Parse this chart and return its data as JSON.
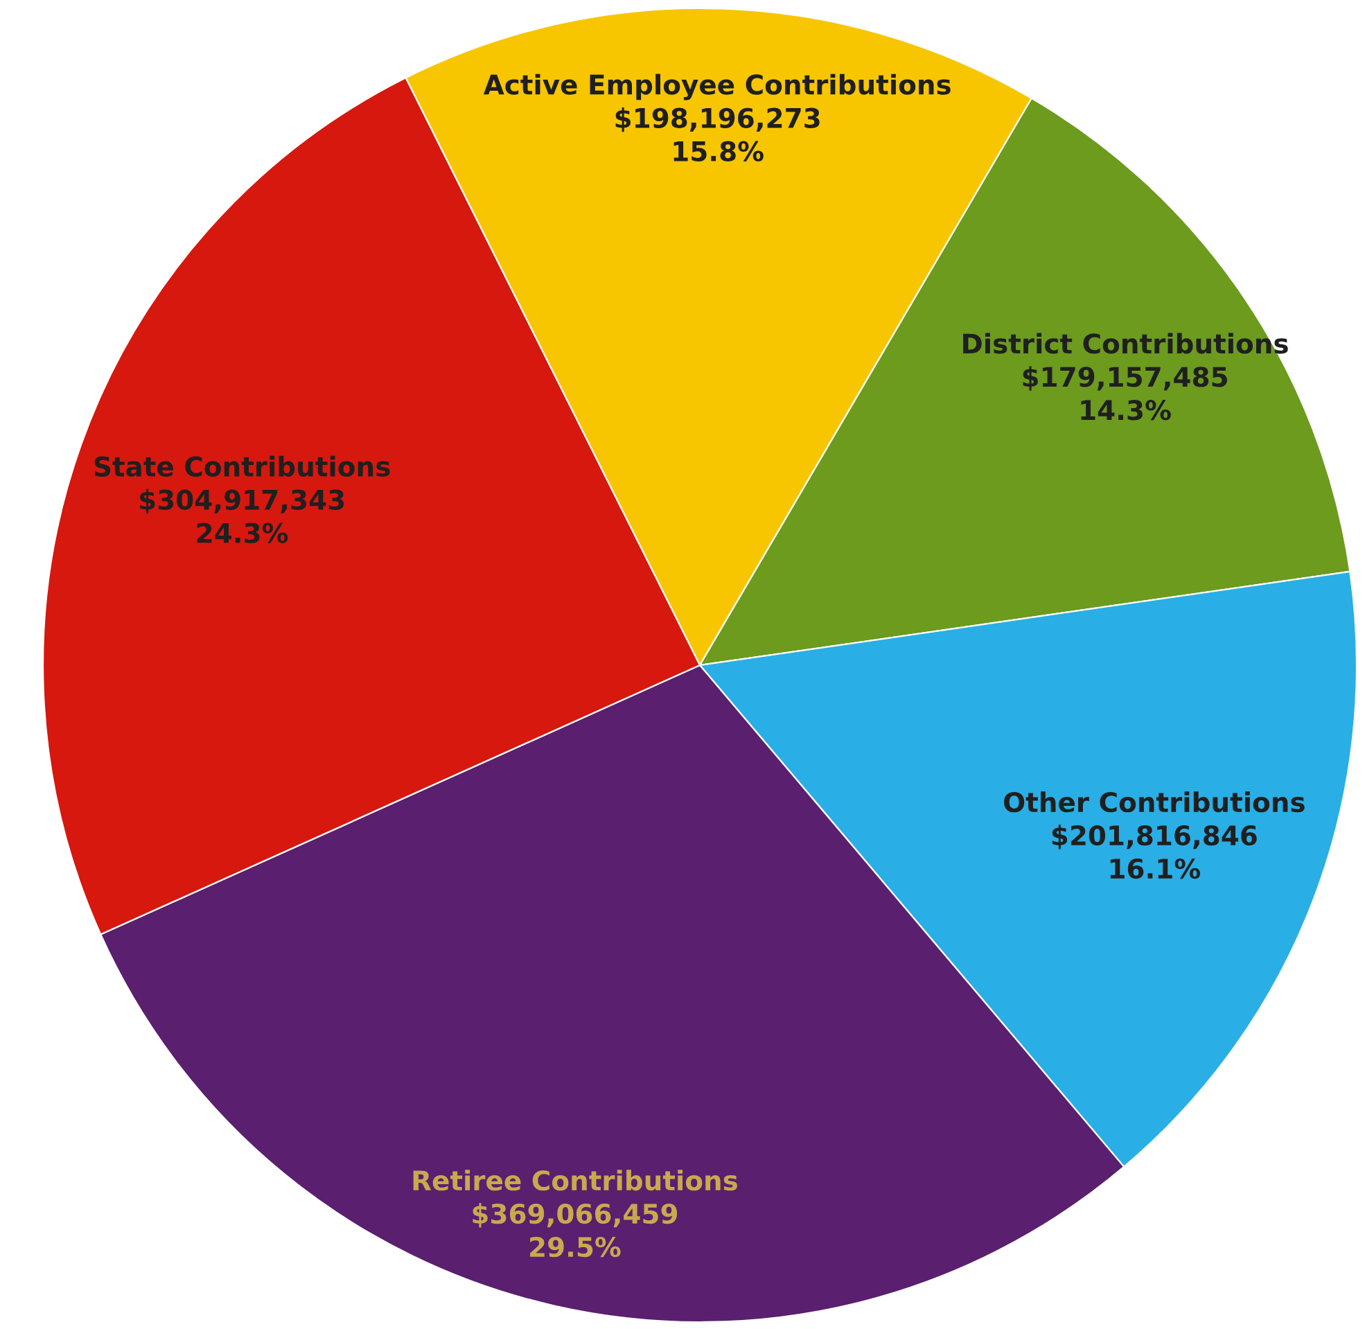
{
  "chart_data": {
    "type": "pie",
    "categories": [
      "Active Employee Contributions",
      "District Contributions",
      "Other Contributions",
      "Retiree Contributions",
      "State Contributions"
    ],
    "values": [
      198196273,
      179157485,
      201816846,
      369066459,
      304917343
    ],
    "colors": [
      "#f7c600",
      "#6c9b1e",
      "#2aaee6",
      "#5a1f6e",
      "#d6180f"
    ],
    "value_labels": [
      "$198,196,273\n15.8%",
      "$179,157,485\n14.3%",
      "$201,816,846\n16.1%",
      "$369,066,459\n29.5%",
      "$304,917,343\n24.3%"
    ],
    "legend": false
  }
}
